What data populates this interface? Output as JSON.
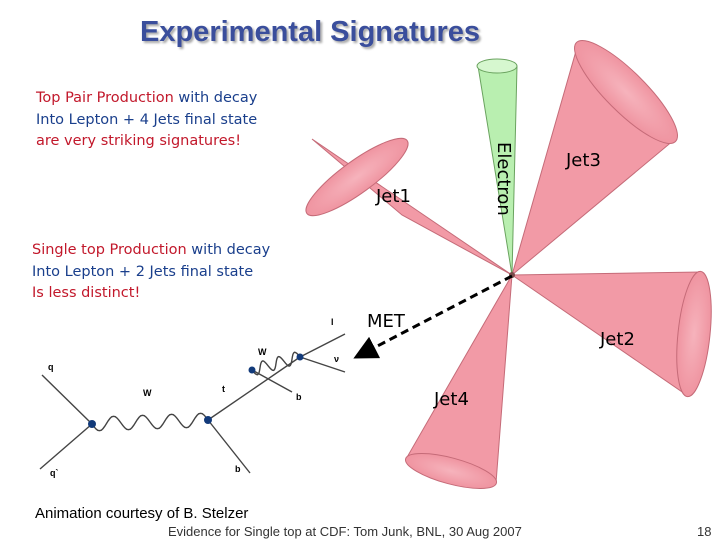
{
  "title": "Experimental Signatures",
  "top_pair": {
    "line1_red": "Top Pair Production",
    "line1_rest": " with decay",
    "line2": "Into Lepton + 4 Jets final state",
    "line3": "are very striking signatures!"
  },
  "single_top": {
    "line1_red": "Single top Production",
    "line1_rest": " with decay",
    "line2": "Into Lepton + 2 Jets final state",
    "line3": "Is less distinct!"
  },
  "event_display": {
    "jets": [
      "Jet1",
      "Jet2",
      "Jet3",
      "Jet4"
    ],
    "electron_label": "Electron",
    "met_label": "MET",
    "colors": {
      "jet_fill": "#f29aa6",
      "jet_edge": "#c56b78",
      "electron_fill": "#b9efb0",
      "met_line": "#000000"
    }
  },
  "feynman": {
    "labels": {
      "q": "q",
      "qbar": "q`",
      "w1": "W",
      "w2": "W",
      "t": "t",
      "b1": "b",
      "b2": "b",
      "l": "l",
      "nu": "ν"
    }
  },
  "courtesy": "Animation courtesy of B. Stelzer",
  "footer": "Evidence for Single top at CDF: Tom Junk, BNL, 30 Aug 2007",
  "page_number": "18"
}
